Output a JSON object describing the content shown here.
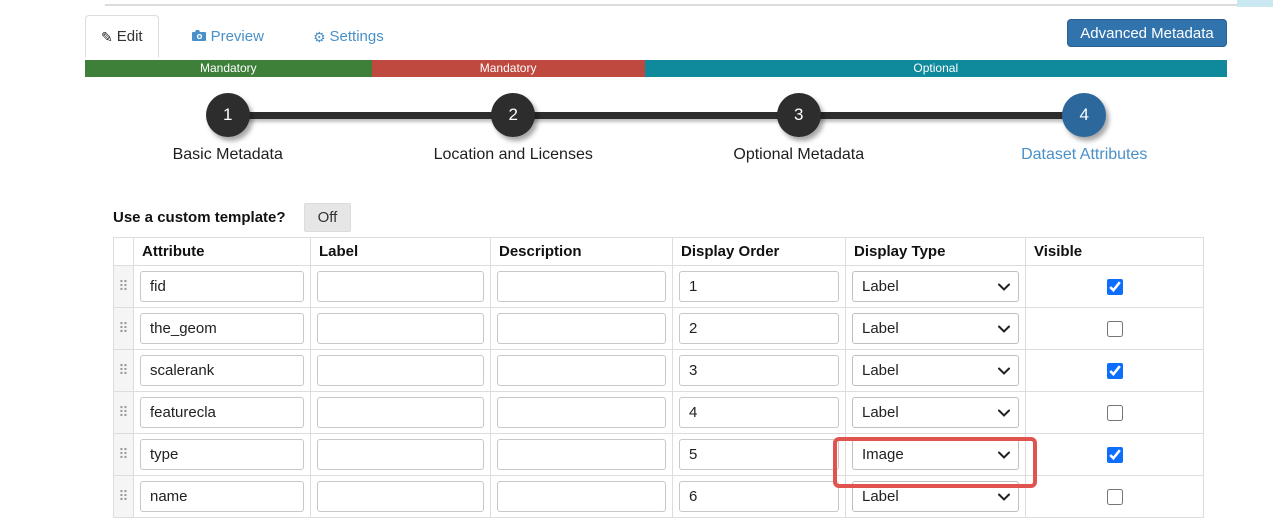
{
  "window": {
    "advanced_button": "Advanced Metadata"
  },
  "tabs": [
    {
      "label": "Edit",
      "icon": "pencil-icon",
      "active": true
    },
    {
      "label": "Preview",
      "icon": "camera-icon",
      "active": false
    },
    {
      "label": "Settings",
      "icon": "gear-icon",
      "active": false
    }
  ],
  "progress": {
    "segments": [
      {
        "label": "Mandatory",
        "color": "#3e8039",
        "width_pct": 25.1
      },
      {
        "label": "Mandatory",
        "color": "#c0493f",
        "width_pct": 23.9
      },
      {
        "label": "Optional",
        "color": "#0f8a9d",
        "width_pct": 51.0
      }
    ]
  },
  "stepper": {
    "steps": [
      {
        "number": "1",
        "label": "Basic Metadata",
        "active": false
      },
      {
        "number": "2",
        "label": "Location and Licenses",
        "active": false
      },
      {
        "number": "3",
        "label": "Optional Metadata",
        "active": false
      },
      {
        "number": "4",
        "label": "Dataset Attributes",
        "active": true
      }
    ]
  },
  "template_toggle": {
    "question": "Use a custom template?",
    "state": "Off"
  },
  "attributes_table": {
    "headers": {
      "attribute": "Attribute",
      "label": "Label",
      "description": "Description",
      "display_order": "Display Order",
      "display_type": "Display Type",
      "visible": "Visible"
    },
    "rows": [
      {
        "attribute": "fid",
        "label": "",
        "description": "",
        "display_order": "1",
        "display_type": "Label",
        "visible": true,
        "highlighted": false
      },
      {
        "attribute": "the_geom",
        "label": "",
        "description": "",
        "display_order": "2",
        "display_type": "Label",
        "visible": false,
        "highlighted": false
      },
      {
        "attribute": "scalerank",
        "label": "",
        "description": "",
        "display_order": "3",
        "display_type": "Label",
        "visible": true,
        "highlighted": false
      },
      {
        "attribute": "featurecla",
        "label": "",
        "description": "",
        "display_order": "4",
        "display_type": "Label",
        "visible": false,
        "highlighted": false
      },
      {
        "attribute": "type",
        "label": "",
        "description": "",
        "display_order": "5",
        "display_type": "Image",
        "visible": true,
        "highlighted": true
      },
      {
        "attribute": "name",
        "label": "",
        "description": "",
        "display_order": "6",
        "display_type": "Label",
        "visible": false,
        "highlighted": false
      }
    ]
  },
  "colors": {
    "highlight_red": "#e0534f",
    "active_step_blue": "#2c689c",
    "link_blue": "#4a90c8",
    "button_blue": "#3173ad",
    "checkbox_blue": "#0d6efd"
  }
}
